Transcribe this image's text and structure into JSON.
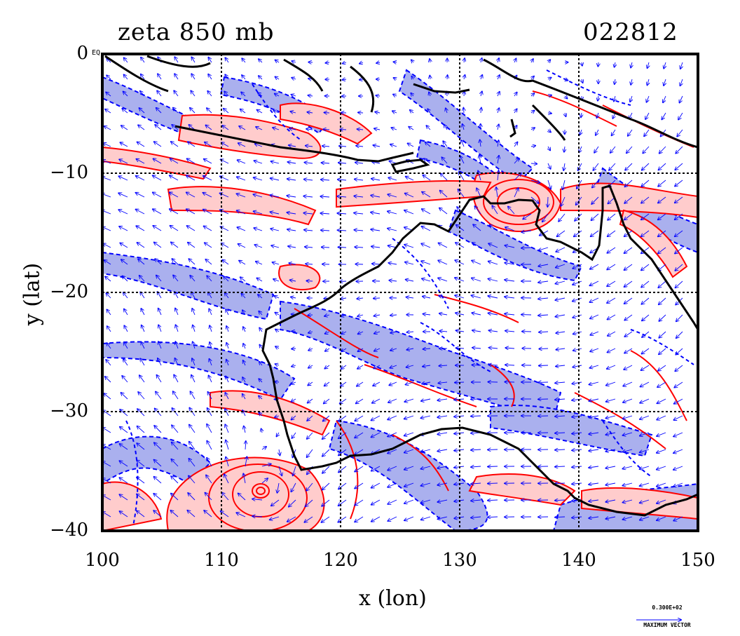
{
  "title": {
    "field": "zeta  850  mb",
    "timestamp": "022812"
  },
  "axes": {
    "xlabel": "x (lon)",
    "ylabel": "y (lat)",
    "x_ticks": [
      "100",
      "110",
      "120",
      "130",
      "140",
      "150"
    ],
    "y_ticks": [
      "0",
      "−10",
      "−20",
      "−30",
      "−40"
    ],
    "equator_mark": "EQ",
    "x_range": [
      100,
      150
    ],
    "y_range": [
      -40,
      0
    ],
    "grid": true
  },
  "vector_legend": {
    "value": "0.300E+02",
    "label": "MAXIMUM VECTOR"
  },
  "colors": {
    "positive_vorticity": "#ff0000",
    "positive_fill": "#ffcccc",
    "negative_vorticity": "#0000ff",
    "negative_fill": "#aab0ee",
    "coastline": "#000000",
    "wind_vectors": "#0000ff"
  },
  "chart_data": {
    "type": "heatmap",
    "title": "zeta  850  mb",
    "xlabel": "x (lon)",
    "ylabel": "y (lat)",
    "xlim": [
      100,
      150
    ],
    "ylim": [
      -40,
      0
    ],
    "features": [
      {
        "name": "cyclone-south",
        "lon": 113.5,
        "lat": -36.5
      },
      {
        "name": "cyclone-north",
        "lon": 135.5,
        "lat": -13
      }
    ]
  }
}
